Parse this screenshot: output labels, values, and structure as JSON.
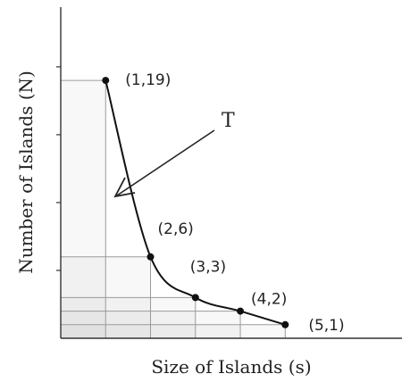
{
  "chart_data": {
    "type": "line",
    "xlabel": "Size of Islands (s)",
    "ylabel": "Number of Islands (N)",
    "x": [
      1,
      2,
      3,
      4,
      5
    ],
    "y": [
      19,
      6,
      3,
      2,
      1
    ],
    "point_labels": [
      "(1,19)",
      "(2,6)",
      "(3,3)",
      "(4,2)",
      "(5,1)"
    ],
    "annotations": [
      {
        "text": "T"
      }
    ],
    "xlim": [
      0,
      7.6
    ],
    "ylim": [
      0,
      24.4
    ],
    "grid": false,
    "shaded_rectangles_per_point": true,
    "colors": {
      "line": "#111111",
      "axis": "#333333",
      "shade": "#bdbdbd",
      "guide": "#9a9a9a"
    }
  }
}
